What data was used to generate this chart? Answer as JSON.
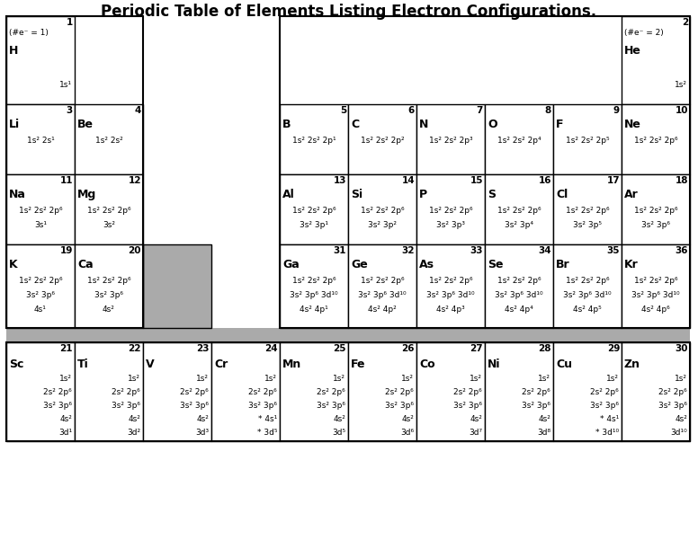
{
  "title": "Periodic Table of Elements Listing Electron Configurations.",
  "row0_elems": [
    {
      "num": "1",
      "col": 0,
      "lines": [
        "(#e⁻ = 1)",
        "H",
        "1s¹"
      ]
    },
    {
      "num": "2",
      "col": 9,
      "lines": [
        "(#e⁻ = 2)",
        "He",
        "1s²"
      ]
    }
  ],
  "row1_elems": [
    {
      "num": "3",
      "col": 0,
      "lines": [
        "Li",
        "1s² 2s¹"
      ]
    },
    {
      "num": "4",
      "col": 1,
      "lines": [
        "Be",
        "1s² 2s²"
      ]
    },
    {
      "num": "5",
      "col": 4,
      "lines": [
        "B",
        "1s² 2s² 2p¹"
      ]
    },
    {
      "num": "6",
      "col": 5,
      "lines": [
        "C",
        "1s² 2s² 2p²"
      ]
    },
    {
      "num": "7",
      "col": 6,
      "lines": [
        "N",
        "1s² 2s² 2p³"
      ]
    },
    {
      "num": "8",
      "col": 7,
      "lines": [
        "O",
        "1s² 2s² 2p⁴"
      ]
    },
    {
      "num": "9",
      "col": 8,
      "lines": [
        "F",
        "1s² 2s² 2p⁵"
      ]
    },
    {
      "num": "10",
      "col": 9,
      "lines": [
        "Ne",
        "1s² 2s² 2p⁶"
      ]
    }
  ],
  "row2_elems": [
    {
      "num": "11",
      "col": 0,
      "lines": [
        "Na",
        "1s² 2s² 2p⁶",
        "3s¹"
      ]
    },
    {
      "num": "12",
      "col": 1,
      "lines": [
        "Mg",
        "1s² 2s² 2p⁶",
        "3s²"
      ]
    },
    {
      "num": "13",
      "col": 4,
      "lines": [
        "Al",
        "1s² 2s² 2p⁶",
        "3s² 3p¹"
      ]
    },
    {
      "num": "14",
      "col": 5,
      "lines": [
        "Si",
        "1s² 2s² 2p⁶",
        "3s² 3p²"
      ]
    },
    {
      "num": "15",
      "col": 6,
      "lines": [
        "P",
        "1s² 2s² 2p⁶",
        "3s² 3p³"
      ]
    },
    {
      "num": "16",
      "col": 7,
      "lines": [
        "S",
        "1s² 2s² 2p⁶",
        "3s² 3p⁴"
      ]
    },
    {
      "num": "17",
      "col": 8,
      "lines": [
        "Cl",
        "1s² 2s² 2p⁶",
        "3s² 3p⁵"
      ]
    },
    {
      "num": "18",
      "col": 9,
      "lines": [
        "Ar",
        "1s² 2s² 2p⁶",
        "3s² 3p⁶"
      ]
    }
  ],
  "row3_elems": [
    {
      "num": "19",
      "col": 0,
      "lines": [
        "K",
        "1s² 2s² 2p⁶",
        "3s² 3p⁶",
        "4s¹"
      ]
    },
    {
      "num": "20",
      "col": 1,
      "lines": [
        "Ca",
        "1s² 2s² 2p⁶",
        "3s² 3p⁶",
        "4s²"
      ]
    },
    {
      "num": "31",
      "col": 4,
      "lines": [
        "Ga",
        "1s² 2s² 2p⁶",
        "3s² 3p⁶ 3d¹⁰",
        "4s² 4p¹"
      ]
    },
    {
      "num": "32",
      "col": 5,
      "lines": [
        "Ge",
        "1s² 2s² 2p⁶",
        "3s² 3p⁶ 3d¹⁰",
        "4s² 4p²"
      ]
    },
    {
      "num": "33",
      "col": 6,
      "lines": [
        "As",
        "1s² 2s² 2p⁶",
        "3s² 3p⁶ 3d¹⁰",
        "4s² 4p³"
      ]
    },
    {
      "num": "34",
      "col": 7,
      "lines": [
        "Se",
        "1s² 2s² 2p⁶",
        "3s² 3p⁶ 3d¹⁰",
        "4s² 4p⁴"
      ]
    },
    {
      "num": "35",
      "col": 8,
      "lines": [
        "Br",
        "1s² 2s² 2p⁶",
        "3s² 3p⁶ 3d¹⁰",
        "4s² 4p⁵"
      ]
    },
    {
      "num": "36",
      "col": 9,
      "lines": [
        "Kr",
        "1s² 2s² 2p⁶",
        "3s² 3p⁶ 3d¹⁰",
        "4s² 4p⁶"
      ]
    }
  ],
  "trans_elems": [
    {
      "num": "21",
      "col": 0,
      "lines": [
        "Sc",
        "1s²",
        "2s² 2p⁶",
        "3s² 3p⁶",
        "4s²",
        "3d¹"
      ]
    },
    {
      "num": "22",
      "col": 1,
      "lines": [
        "Ti",
        "1s²",
        "2s² 2p⁶",
        "3s² 3p⁶",
        "4s²",
        "3d²"
      ]
    },
    {
      "num": "23",
      "col": 2,
      "lines": [
        "V",
        "1s²",
        "2s² 2p⁶",
        "3s² 3p⁶",
        "4s²",
        "3d³"
      ]
    },
    {
      "num": "24",
      "col": 3,
      "lines": [
        "Cr",
        "1s²",
        "2s² 2p⁶",
        "3s² 3p⁶",
        "* 4s¹",
        "* 3d⁵"
      ]
    },
    {
      "num": "25",
      "col": 4,
      "lines": [
        "Mn",
        "1s²",
        "2s² 2p⁶",
        "3s² 3p⁶",
        "4s²",
        "3d⁵"
      ]
    },
    {
      "num": "26",
      "col": 5,
      "lines": [
        "Fe",
        "1s²",
        "2s² 2p⁶",
        "3s² 3p⁶",
        "4s²",
        "3d⁶"
      ]
    },
    {
      "num": "27",
      "col": 6,
      "lines": [
        "Co",
        "1s²",
        "2s² 2p⁶",
        "3s² 3p⁶",
        "4s²",
        "3d⁷"
      ]
    },
    {
      "num": "28",
      "col": 7,
      "lines": [
        "Ni",
        "1s²",
        "2s² 2p⁶",
        "3s² 3p⁶",
        "4s²",
        "3d⁸"
      ]
    },
    {
      "num": "29",
      "col": 8,
      "lines": [
        "Cu",
        "1s²",
        "2s² 2p⁶",
        "3s² 3p⁶",
        "* 4s¹",
        "* 3d¹⁰"
      ]
    },
    {
      "num": "30",
      "col": 9,
      "lines": [
        "Zn",
        "1s²",
        "2s² 2p⁶",
        "3s² 3p⁶",
        "4s²",
        "3d¹⁰"
      ]
    }
  ]
}
